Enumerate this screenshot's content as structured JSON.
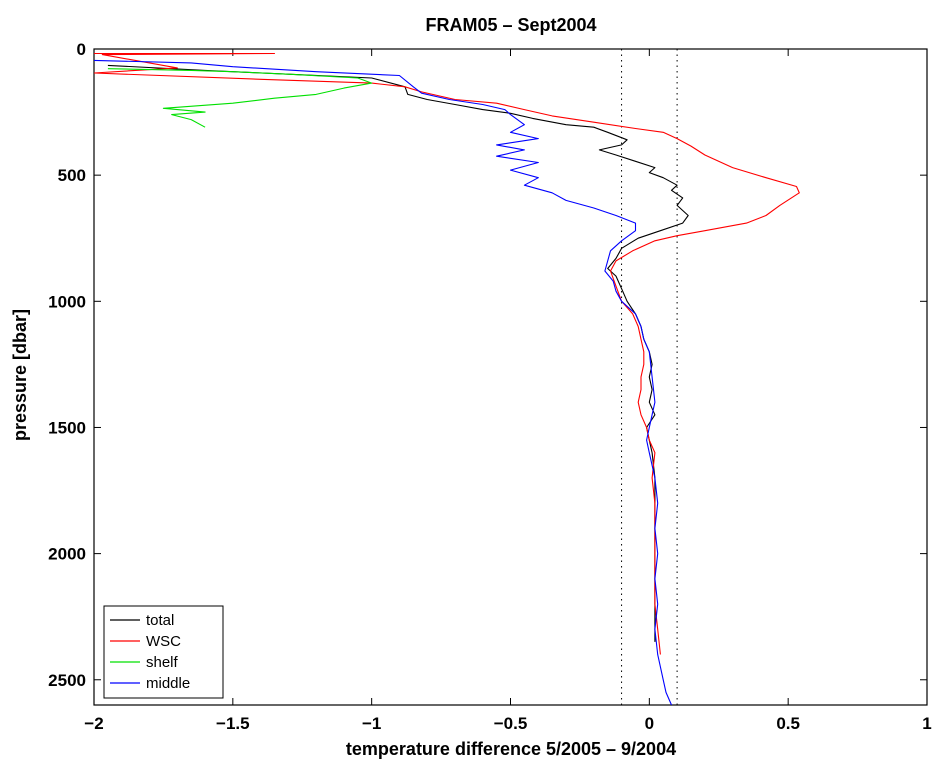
{
  "chart_data": {
    "type": "line",
    "title": "FRAM05 – Sept2004",
    "xlabel": "temperature difference 5/2005 – 9/2004",
    "ylabel": "pressure [dbar]",
    "xlim": [
      -2,
      1
    ],
    "ylim": [
      0,
      2600
    ],
    "y_reversed": true,
    "x_ticks": [
      -2,
      -1.5,
      -1,
      -0.5,
      0,
      0.5,
      1
    ],
    "x_tick_labels": [
      "−2",
      "−1.5",
      "−1",
      "−0.5",
      "0",
      "0.5",
      "1"
    ],
    "y_ticks": [
      0,
      500,
      1000,
      1500,
      2000,
      2500
    ],
    "y_tick_labels": [
      "0",
      "500",
      "1000",
      "1500",
      "2000",
      "2500"
    ],
    "grid": false,
    "legend_position": "bottom-left",
    "reference_lines": [
      {
        "x": -0.1,
        "style": "dotted"
      },
      {
        "x": 0.1,
        "style": "dotted"
      }
    ],
    "series": [
      {
        "name": "total",
        "color": "#000000",
        "points": [
          [
            -1.95,
            65
          ],
          [
            -1.6,
            85
          ],
          [
            -1.3,
            100
          ],
          [
            -1.0,
            115
          ],
          [
            -0.88,
            150
          ],
          [
            -0.87,
            180
          ],
          [
            -0.8,
            200
          ],
          [
            -0.7,
            220
          ],
          [
            -0.6,
            240
          ],
          [
            -0.5,
            255
          ],
          [
            -0.42,
            275
          ],
          [
            -0.3,
            300
          ],
          [
            -0.2,
            310
          ],
          [
            -0.15,
            330
          ],
          [
            -0.08,
            360
          ],
          [
            -0.1,
            380
          ],
          [
            -0.18,
            400
          ],
          [
            -0.12,
            420
          ],
          [
            -0.05,
            445
          ],
          [
            0.02,
            470
          ],
          [
            0.0,
            490
          ],
          [
            0.05,
            510
          ],
          [
            0.1,
            540
          ],
          [
            0.08,
            560
          ],
          [
            0.12,
            590
          ],
          [
            0.1,
            620
          ],
          [
            0.14,
            660
          ],
          [
            0.12,
            690
          ],
          [
            0.04,
            720
          ],
          [
            -0.04,
            750
          ],
          [
            -0.1,
            790
          ],
          [
            -0.12,
            830
          ],
          [
            -0.15,
            870
          ],
          [
            -0.12,
            900
          ],
          [
            -0.1,
            950
          ],
          [
            -0.08,
            1000
          ],
          [
            -0.05,
            1050
          ],
          [
            -0.03,
            1100
          ],
          [
            -0.02,
            1150
          ],
          [
            0.0,
            1200
          ],
          [
            0.01,
            1250
          ],
          [
            0.0,
            1300
          ],
          [
            0.01,
            1350
          ],
          [
            0.0,
            1400
          ],
          [
            0.02,
            1450
          ],
          [
            -0.01,
            1500
          ],
          [
            0.0,
            1550
          ],
          [
            0.01,
            1600
          ],
          [
            0.02,
            1700
          ],
          [
            0.02,
            1800
          ],
          [
            0.02,
            2000
          ],
          [
            0.02,
            2200
          ],
          [
            0.02,
            2350
          ]
        ]
      },
      {
        "name": "WSC",
        "color": "#ff0000",
        "points": [
          [
            -2.0,
            18
          ],
          [
            -1.35,
            18
          ],
          [
            -1.97,
            22
          ],
          [
            -1.7,
            75
          ],
          [
            -2.0,
            95
          ],
          [
            -1.4,
            120
          ],
          [
            -1.0,
            135
          ],
          [
            -0.88,
            150
          ],
          [
            -0.82,
            170
          ],
          [
            -0.7,
            200
          ],
          [
            -0.55,
            215
          ],
          [
            -0.45,
            240
          ],
          [
            -0.35,
            265
          ],
          [
            -0.2,
            290
          ],
          [
            -0.05,
            315
          ],
          [
            0.05,
            330
          ],
          [
            0.1,
            355
          ],
          [
            0.15,
            385
          ],
          [
            0.2,
            420
          ],
          [
            0.3,
            470
          ],
          [
            0.42,
            510
          ],
          [
            0.53,
            545
          ],
          [
            0.54,
            570
          ],
          [
            0.47,
            620
          ],
          [
            0.42,
            660
          ],
          [
            0.35,
            690
          ],
          [
            0.2,
            720
          ],
          [
            0.1,
            740
          ],
          [
            0.02,
            760
          ],
          [
            -0.06,
            800
          ],
          [
            -0.12,
            840
          ],
          [
            -0.14,
            880
          ],
          [
            -0.12,
            940
          ],
          [
            -0.1,
            1000
          ],
          [
            -0.06,
            1050
          ],
          [
            -0.04,
            1100
          ],
          [
            -0.03,
            1150
          ],
          [
            -0.02,
            1200
          ],
          [
            -0.02,
            1250
          ],
          [
            -0.03,
            1300
          ],
          [
            -0.03,
            1350
          ],
          [
            -0.04,
            1400
          ],
          [
            -0.03,
            1450
          ],
          [
            -0.01,
            1500
          ],
          [
            0.0,
            1550
          ],
          [
            0.02,
            1600
          ],
          [
            0.01,
            1700
          ],
          [
            0.02,
            1800
          ],
          [
            0.02,
            2000
          ],
          [
            0.02,
            2200
          ],
          [
            0.03,
            2300
          ],
          [
            0.04,
            2400
          ]
        ]
      },
      {
        "name": "shelf",
        "color": "#00e000",
        "points": [
          [
            -1.95,
            78
          ],
          [
            -1.65,
            85
          ],
          [
            -1.5,
            90
          ],
          [
            -1.3,
            100
          ],
          [
            -1.05,
            115
          ],
          [
            -1.0,
            135
          ],
          [
            -1.1,
            155
          ],
          [
            -1.2,
            180
          ],
          [
            -1.35,
            195
          ],
          [
            -1.5,
            215
          ],
          [
            -1.75,
            235
          ],
          [
            -1.6,
            250
          ],
          [
            -1.72,
            260
          ],
          [
            -1.65,
            280
          ],
          [
            -1.6,
            310
          ]
        ]
      },
      {
        "name": "middle",
        "color": "#0000ff",
        "points": [
          [
            -2.0,
            45
          ],
          [
            -1.65,
            55
          ],
          [
            -1.5,
            70
          ],
          [
            -1.2,
            90
          ],
          [
            -0.9,
            105
          ],
          [
            -0.85,
            150
          ],
          [
            -0.82,
            175
          ],
          [
            -0.72,
            200
          ],
          [
            -0.6,
            220
          ],
          [
            -0.52,
            240
          ],
          [
            -0.5,
            260
          ],
          [
            -0.45,
            300
          ],
          [
            -0.5,
            330
          ],
          [
            -0.4,
            355
          ],
          [
            -0.55,
            380
          ],
          [
            -0.45,
            400
          ],
          [
            -0.55,
            425
          ],
          [
            -0.4,
            450
          ],
          [
            -0.5,
            480
          ],
          [
            -0.4,
            510
          ],
          [
            -0.45,
            540
          ],
          [
            -0.35,
            570
          ],
          [
            -0.3,
            600
          ],
          [
            -0.2,
            630
          ],
          [
            -0.12,
            660
          ],
          [
            -0.05,
            690
          ],
          [
            -0.05,
            720
          ],
          [
            -0.1,
            760
          ],
          [
            -0.14,
            800
          ],
          [
            -0.15,
            840
          ],
          [
            -0.16,
            880
          ],
          [
            -0.13,
            920
          ],
          [
            -0.12,
            960
          ],
          [
            -0.1,
            1000
          ],
          [
            -0.05,
            1050
          ],
          [
            -0.03,
            1100
          ],
          [
            -0.02,
            1150
          ],
          [
            0.0,
            1200
          ],
          [
            0.01,
            1300
          ],
          [
            0.02,
            1400
          ],
          [
            0.01,
            1450
          ],
          [
            0.0,
            1500
          ],
          [
            -0.01,
            1550
          ],
          [
            0.0,
            1600
          ],
          [
            0.02,
            1700
          ],
          [
            0.03,
            1800
          ],
          [
            0.02,
            1900
          ],
          [
            0.03,
            2000
          ],
          [
            0.02,
            2100
          ],
          [
            0.03,
            2200
          ],
          [
            0.02,
            2300
          ],
          [
            0.03,
            2400
          ],
          [
            0.05,
            2500
          ],
          [
            0.06,
            2550
          ],
          [
            0.08,
            2600
          ]
        ]
      }
    ]
  }
}
